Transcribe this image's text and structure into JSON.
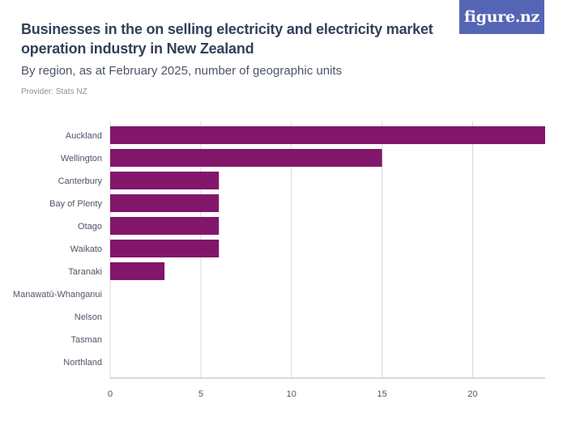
{
  "header": {
    "title": "Businesses in the on selling electricity and electricity market operation industry in New Zealand",
    "subtitle": "By region, as at February 2025, number of geographic units",
    "provider": "Provider: Stats NZ",
    "logo_text": "figure.nz"
  },
  "colors": {
    "bar": "#82166b",
    "title": "#34405a",
    "text": "#4c5566",
    "grid": "#d9d9d9",
    "logo_bg": "#5465b5"
  },
  "chart_data": {
    "type": "bar",
    "orientation": "horizontal",
    "categories": [
      "Auckland",
      "Wellington",
      "Canterbury",
      "Bay of Plenty",
      "Otago",
      "Waikato",
      "Taranaki",
      "Manawatū-Whanganui",
      "Nelson",
      "Tasman",
      "Northland"
    ],
    "values": [
      24,
      15,
      6,
      6,
      6,
      6,
      3,
      0,
      0,
      0,
      0
    ],
    "xlim": [
      0,
      24
    ],
    "xticks": [
      0,
      5,
      10,
      15,
      20
    ],
    "title": "Businesses in the on selling electricity and electricity market operation industry in New Zealand",
    "subtitle": "By region, as at February 2025, number of geographic units",
    "xlabel": "",
    "ylabel": "",
    "grid": true,
    "legend": "none"
  }
}
